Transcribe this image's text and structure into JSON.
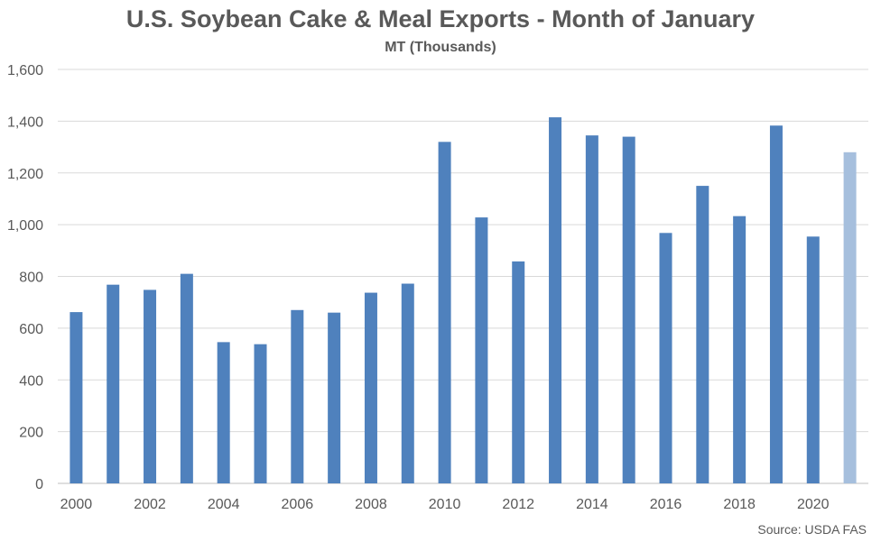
{
  "chart_data": {
    "type": "bar",
    "title": "U.S. Soybean Cake & Meal Exports - Month of January",
    "subtitle": "MT (Thousands)",
    "source": "Source: USDA FAS",
    "categories": [
      "2000",
      "2001",
      "2002",
      "2003",
      "2004",
      "2005",
      "2006",
      "2007",
      "2008",
      "2009",
      "2010",
      "2011",
      "2012",
      "2013",
      "2014",
      "2015",
      "2016",
      "2017",
      "2018",
      "2019",
      "2020",
      "2021"
    ],
    "x_tick_labels": [
      "2000",
      "2002",
      "2004",
      "2006",
      "2008",
      "2010",
      "2012",
      "2014",
      "2016",
      "2018",
      "2020"
    ],
    "values": [
      662,
      768,
      748,
      810,
      546,
      538,
      670,
      660,
      737,
      772,
      1320,
      1028,
      858,
      1415,
      1345,
      1340,
      968,
      1150,
      1033,
      1383,
      954,
      1280
    ],
    "highlight_last": true,
    "ylim": [
      0,
      1600
    ],
    "y_ticks": [
      0,
      200,
      400,
      600,
      800,
      1000,
      1200,
      1400,
      1600
    ],
    "y_tick_labels": [
      "0",
      "200",
      "400",
      "600",
      "800",
      "1,000",
      "1,200",
      "1,400",
      "1,600"
    ],
    "grid": true,
    "colors": {
      "bar": "#4f81bd",
      "bar_highlight": "#a6bfdd",
      "grid": "#d9d9d9",
      "text": "#595959"
    }
  }
}
